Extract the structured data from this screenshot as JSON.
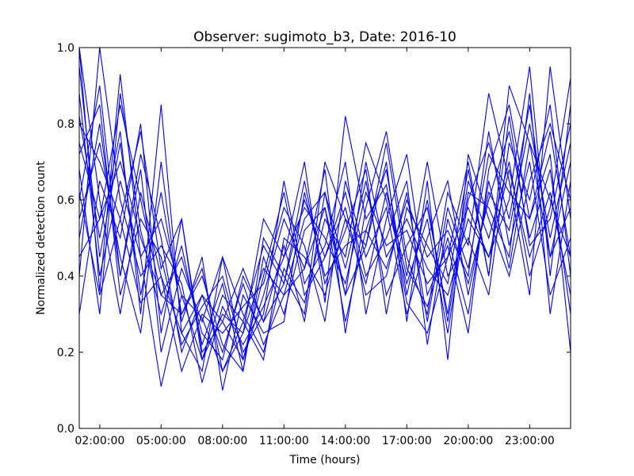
{
  "chart_data": {
    "type": "line",
    "title": "Observer: sugimoto_b3, Date: 2016-10",
    "xlabel": "Time (hours)",
    "ylabel": "Normalized detection count",
    "xlim": [
      1.0,
      25.0
    ],
    "ylim": [
      0.0,
      1.0
    ],
    "x_ticks": [
      2,
      5,
      8,
      11,
      14,
      17,
      20,
      23
    ],
    "x_tick_labels": [
      "02:00:00",
      "05:00:00",
      "08:00:00",
      "11:00:00",
      "14:00:00",
      "17:00:00",
      "20:00:00",
      "23:00:00"
    ],
    "y_ticks": [
      0.0,
      0.2,
      0.4,
      0.6,
      0.8,
      1.0
    ],
    "y_tick_labels": [
      "0.0",
      "0.2",
      "0.4",
      "0.6",
      "0.8",
      "1.0"
    ],
    "grid": false,
    "series_color": "#0000ff",
    "x": [
      1,
      2,
      3,
      4,
      5,
      6,
      7,
      8,
      9,
      10,
      11,
      12,
      13,
      14,
      15,
      16,
      17,
      18,
      19,
      20,
      21,
      22,
      23,
      24,
      25
    ],
    "series": [
      {
        "values": [
          1.0,
          0.36,
          0.93,
          0.45,
          0.11,
          0.35,
          0.29,
          0.15,
          0.25,
          0.55,
          0.45,
          0.7,
          0.33,
          0.82,
          0.55,
          0.64,
          0.33,
          0.25,
          0.45,
          0.7,
          0.4,
          0.9,
          0.75,
          0.6,
          0.45
        ]
      },
      {
        "values": [
          0.8,
          0.7,
          0.55,
          0.33,
          0.4,
          0.25,
          0.15,
          0.45,
          0.3,
          0.2,
          0.42,
          0.33,
          0.55,
          0.45,
          0.75,
          0.6,
          0.38,
          0.55,
          0.25,
          0.6,
          0.75,
          0.55,
          0.85,
          0.45,
          0.7
        ]
      },
      {
        "values": [
          0.6,
          0.9,
          0.4,
          0.72,
          0.5,
          0.2,
          0.35,
          0.28,
          0.18,
          0.35,
          0.55,
          0.42,
          0.68,
          0.25,
          0.58,
          0.78,
          0.45,
          0.3,
          0.62,
          0.48,
          0.88,
          0.65,
          0.35,
          0.95,
          0.55
        ]
      },
      {
        "values": [
          0.45,
          0.55,
          0.85,
          0.6,
          0.35,
          0.45,
          0.25,
          0.18,
          0.4,
          0.28,
          0.38,
          0.6,
          0.45,
          0.62,
          0.4,
          0.5,
          0.65,
          0.22,
          0.55,
          0.38,
          0.6,
          0.78,
          0.5,
          0.68,
          0.3
        ]
      },
      {
        "values": [
          0.95,
          0.45,
          0.75,
          0.35,
          0.62,
          0.3,
          0.4,
          0.22,
          0.15,
          0.45,
          0.3,
          0.52,
          0.58,
          0.35,
          0.7,
          0.45,
          0.55,
          0.42,
          0.35,
          0.55,
          0.45,
          0.6,
          0.95,
          0.4,
          0.85
        ]
      },
      {
        "values": [
          0.3,
          0.65,
          0.5,
          0.8,
          0.25,
          0.55,
          0.18,
          0.35,
          0.28,
          0.18,
          0.5,
          0.45,
          0.35,
          0.55,
          0.48,
          0.7,
          0.28,
          0.65,
          0.18,
          0.72,
          0.55,
          0.4,
          0.65,
          0.8,
          0.6
        ]
      },
      {
        "values": [
          0.72,
          0.85,
          0.35,
          0.55,
          0.45,
          0.22,
          0.32,
          0.4,
          0.2,
          0.3,
          0.65,
          0.38,
          0.48,
          0.7,
          0.3,
          0.55,
          0.72,
          0.35,
          0.48,
          0.25,
          0.68,
          0.85,
          0.55,
          0.72,
          0.2
        ]
      },
      {
        "values": [
          0.88,
          0.4,
          0.65,
          0.45,
          0.55,
          0.35,
          0.18,
          0.3,
          0.25,
          0.42,
          0.35,
          0.55,
          0.62,
          0.42,
          0.65,
          0.35,
          0.48,
          0.58,
          0.3,
          0.65,
          0.5,
          0.7,
          0.4,
          0.58,
          0.92
        ]
      },
      {
        "values": [
          0.55,
          0.75,
          0.45,
          0.25,
          0.7,
          0.28,
          0.45,
          0.1,
          0.35,
          0.25,
          0.28,
          0.62,
          0.4,
          0.48,
          0.52,
          0.42,
          0.6,
          0.45,
          0.52,
          0.4,
          0.78,
          0.48,
          0.7,
          0.35,
          0.5
        ]
      },
      {
        "values": [
          0.68,
          0.3,
          0.88,
          0.52,
          0.3,
          0.48,
          0.22,
          0.38,
          0.15,
          0.5,
          0.4,
          0.3,
          0.7,
          0.55,
          0.38,
          0.62,
          0.4,
          0.7,
          0.4,
          0.5,
          0.35,
          0.75,
          0.6,
          0.85,
          0.4
        ]
      },
      {
        "values": [
          1.0,
          0.6,
          0.3,
          0.62,
          0.4,
          0.15,
          0.3,
          0.25,
          0.32,
          0.38,
          0.58,
          0.48,
          0.28,
          0.65,
          0.45,
          0.58,
          0.3,
          0.5,
          0.65,
          0.35,
          0.62,
          0.52,
          0.8,
          0.5,
          0.75
        ]
      },
      {
        "values": [
          0.4,
          1.0,
          0.6,
          0.4,
          0.48,
          0.38,
          0.12,
          0.32,
          0.22,
          0.32,
          0.45,
          0.58,
          0.5,
          0.38,
          0.62,
          0.48,
          0.52,
          0.38,
          0.45,
          0.58,
          0.45,
          0.68,
          0.45,
          0.62,
          0.35
        ]
      },
      {
        "values": [
          0.82,
          0.5,
          0.78,
          0.3,
          0.85,
          0.25,
          0.35,
          0.2,
          0.38,
          0.22,
          0.35,
          0.42,
          0.58,
          0.28,
          0.52,
          0.68,
          0.35,
          0.6,
          0.28,
          0.62,
          0.58,
          0.45,
          0.88,
          0.3,
          0.65
        ]
      },
      {
        "values": [
          0.5,
          0.8,
          0.4,
          0.68,
          0.2,
          0.42,
          0.28,
          0.45,
          0.18,
          0.4,
          0.62,
          0.35,
          0.45,
          0.58,
          0.35,
          0.4,
          0.62,
          0.28,
          0.58,
          0.42,
          0.72,
          0.62,
          0.55,
          0.78,
          0.45
        ]
      },
      {
        "values": [
          0.75,
          0.55,
          0.7,
          0.5,
          0.35,
          0.3,
          0.42,
          0.15,
          0.28,
          0.48,
          0.38,
          0.65,
          0.38,
          0.52,
          0.68,
          0.3,
          0.58,
          0.48,
          0.38,
          0.68,
          0.4,
          0.82,
          0.48,
          0.55,
          0.8
        ]
      },
      {
        "values": [
          0.62,
          0.35,
          0.55,
          0.78,
          0.42,
          0.55,
          0.2,
          0.28,
          0.42,
          0.28,
          0.48,
          0.28,
          0.62,
          0.35,
          0.48,
          0.75,
          0.42,
          0.32,
          0.5,
          0.3,
          0.65,
          0.42,
          0.75,
          0.45,
          0.58
        ]
      }
    ]
  }
}
